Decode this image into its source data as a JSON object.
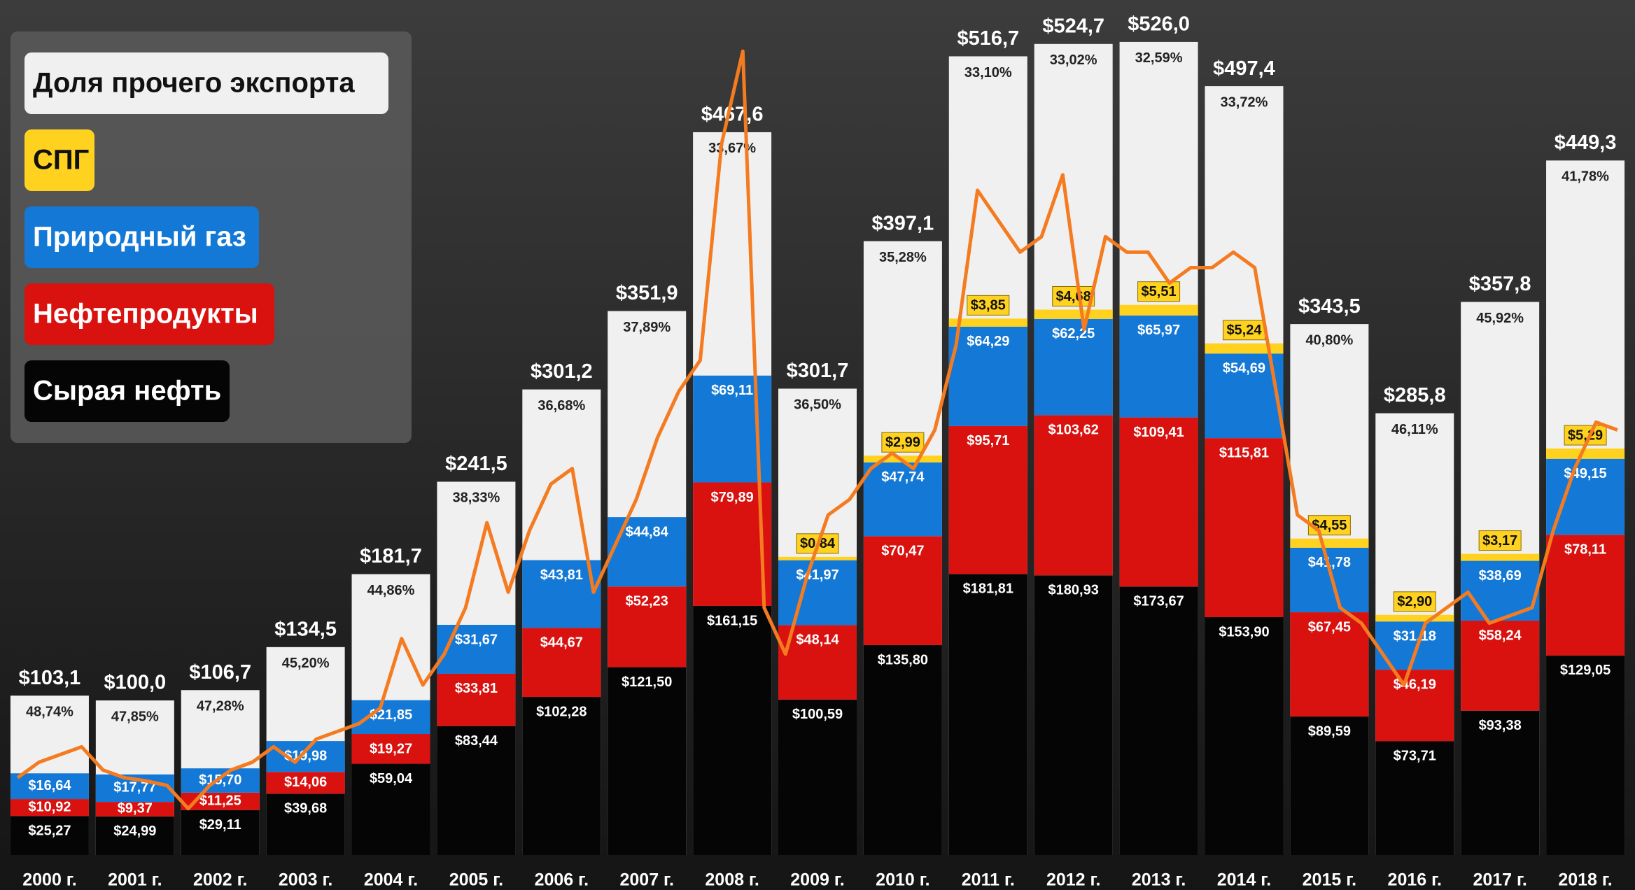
{
  "chart_data": {
    "type": "bar",
    "stacked": true,
    "categories": [
      "2000 г.",
      "2001 г.",
      "2002 г.",
      "2003 г.",
      "2004 г.",
      "2005 г.",
      "2006 г.",
      "2007 г.",
      "2008 г.",
      "2009 г.",
      "2010 г.",
      "2011 г.",
      "2012 г.",
      "2013 г.",
      "2014 г.",
      "2015 г.",
      "2016 г.",
      "2017 г.",
      "2018 г."
    ],
    "totals": {
      "values": [
        103.1,
        100.0,
        106.7,
        134.5,
        181.7,
        241.5,
        301.2,
        351.9,
        467.6,
        301.7,
        397.1,
        516.7,
        524.7,
        526.0,
        497.4,
        343.5,
        285.8,
        357.8,
        449.3
      ],
      "value_labels": [
        "$103,1",
        "$100,0",
        "$106,7",
        "$134,5",
        "$181,7",
        "$241,5",
        "$301,2",
        "$351,9",
        "$467,6",
        "$301,7",
        "$397,1",
        "$516,7",
        "$524,7",
        "$526,0",
        "$497,4",
        "$343,5",
        "$285,8",
        "$357,8",
        "$449,3"
      ]
    },
    "series": [
      {
        "name": "Сырая нефть",
        "color": "#050505",
        "text_color": "#ffffff",
        "values": [
          25.27,
          24.99,
          29.11,
          39.68,
          59.04,
          83.44,
          102.28,
          121.5,
          161.15,
          100.59,
          135.8,
          181.81,
          180.93,
          173.67,
          153.9,
          89.59,
          73.71,
          93.38,
          129.05
        ],
        "value_labels": [
          "$25,27",
          "$24,99",
          "$29,11",
          "$39,68",
          "$59,04",
          "$83,44",
          "$102,28",
          "$121,50",
          "$161,15",
          "$100,59",
          "$135,80",
          "$181,81",
          "$180,93",
          "$173,67",
          "$153,90",
          "$89,59",
          "$73,71",
          "$93,38",
          "$129,05"
        ]
      },
      {
        "name": "Нефтепродукты",
        "color": "#d9120f",
        "text_color": "#ffffff",
        "values": [
          10.92,
          9.37,
          11.25,
          14.06,
          19.27,
          33.81,
          44.67,
          52.23,
          79.89,
          48.14,
          70.47,
          95.71,
          103.62,
          109.41,
          115.81,
          67.45,
          46.19,
          58.24,
          78.11
        ],
        "value_labels": [
          "$10,92",
          "$9,37",
          "$11,25",
          "$14,06",
          "$19,27",
          "$33,81",
          "$44,67",
          "$52,23",
          "$79,89",
          "$48,14",
          "$70,47",
          "$95,71",
          "$103,62",
          "$109,41",
          "$115,81",
          "$67,45",
          "$46,19",
          "$58,24",
          "$78,11"
        ]
      },
      {
        "name": "Природный газ",
        "color": "#1479d6",
        "text_color": "#ffffff",
        "values": [
          16.64,
          17.77,
          15.7,
          19.98,
          21.85,
          31.67,
          43.81,
          44.84,
          69.11,
          41.97,
          47.74,
          64.29,
          62.25,
          65.97,
          54.69,
          41.78,
          31.18,
          38.69,
          49.15
        ],
        "value_labels": [
          "$16,64",
          "$17,77",
          "$15,70",
          "$19,98",
          "$21,85",
          "$31,67",
          "$43,81",
          "$44,84",
          "$69,11",
          "$41,97",
          "$47,74",
          "$64,29",
          "$62,25",
          "$65,97",
          "$54,69",
          "$41,78",
          "$31,18",
          "$38,69",
          "$49,15"
        ]
      },
      {
        "name": "СПГ",
        "color": "#ffd21f",
        "text_color": "#111111",
        "values": [
          null,
          null,
          null,
          null,
          null,
          null,
          null,
          null,
          null,
          0.84,
          2.99,
          3.85,
          4.68,
          5.51,
          5.24,
          4.55,
          2.9,
          3.17,
          5.29
        ],
        "value_labels": [
          null,
          null,
          null,
          null,
          null,
          null,
          null,
          null,
          null,
          "$0,84",
          "$2,99",
          "$3,85",
          "$4,68",
          "$5,51",
          "$5,24",
          "$4,55",
          "$2,90",
          "$3,17",
          "$5,29"
        ]
      },
      {
        "name": "Доля прочего экспорта",
        "color": "#f0f0f0",
        "text_color": "#222222",
        "values": [
          48.74,
          47.85,
          47.28,
          45.2,
          44.86,
          38.33,
          36.68,
          37.89,
          33.67,
          36.5,
          35.28,
          33.1,
          33.02,
          32.59,
          33.72,
          40.8,
          46.11,
          45.92,
          41.78
        ],
        "value_labels": [
          "48,74%",
          "47,85%",
          "47,28%",
          "45,20%",
          "44,86%",
          "38,33%",
          "36,68%",
          "37,89%",
          "33,67%",
          "36,50%",
          "35,28%",
          "33,10%",
          "33,02%",
          "32,59%",
          "33,72%",
          "40,80%",
          "46,11%",
          "45,92%",
          "41,78%"
        ]
      }
    ],
    "line": {
      "color": "#f47b20",
      "values": [
        50,
        60,
        65,
        70,
        55,
        50,
        48,
        45,
        30,
        45,
        55,
        60,
        70,
        60,
        75,
        80,
        85,
        95,
        140,
        110,
        130,
        160,
        215,
        170,
        210,
        240,
        250,
        170,
        200,
        230,
        270,
        300,
        320,
        460,
        520,
        160,
        130,
        180,
        220,
        230,
        250,
        260,
        250,
        275,
        330,
        430,
        410,
        390,
        400,
        440,
        340,
        400,
        390,
        390,
        370,
        380,
        380,
        390,
        380,
        300,
        220,
        210,
        160,
        150,
        130,
        110,
        150,
        160,
        170,
        150,
        155,
        160,
        210,
        250,
        280,
        275
      ]
    },
    "ylim": [
      0,
      540
    ]
  }
}
